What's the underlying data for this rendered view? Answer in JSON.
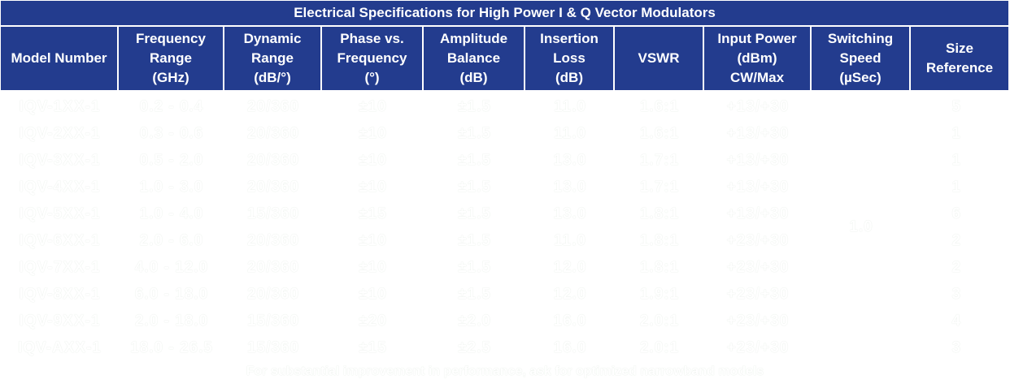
{
  "title": "Electrical Specifications for High Power I & Q Vector Modulators",
  "headers": [
    [
      "Model Number"
    ],
    [
      "Frequency",
      "Range",
      "(GHz)"
    ],
    [
      "Dynamic",
      "Range",
      "(dB/°)"
    ],
    [
      "Phase vs.",
      "Frequency",
      "(°)"
    ],
    [
      "Amplitude",
      "Balance",
      "(dB)"
    ],
    [
      "Insertion",
      "Loss",
      "(dB)"
    ],
    [
      "VSWR"
    ],
    [
      "Input Power",
      "(dBm)",
      "CW/Max"
    ],
    [
      "Switching",
      "Speed",
      "(µSec)"
    ],
    [
      "Size",
      "Reference"
    ]
  ],
  "rows": [
    [
      "IQV-1XX-1",
      "0.2 - 0.4",
      "20/360",
      "±10",
      "±1.5",
      "11.0",
      "1.6:1",
      "+13/+30",
      "5"
    ],
    [
      "IQV-2XX-1",
      "0.3 - 0.6",
      "20/360",
      "±10",
      "±1.5",
      "11.0",
      "1.6:1",
      "+13/+30",
      "1"
    ],
    [
      "IQV-3XX-1",
      "0.5 - 2.0",
      "20/360",
      "±10",
      "±1.5",
      "13.0",
      "1.7:1",
      "+13/+30",
      "1"
    ],
    [
      "IQV-4XX-1",
      "1.0 - 3.0",
      "20/360",
      "±10",
      "±1.5",
      "13.0",
      "1.7:1",
      "+13/+30",
      "1"
    ],
    [
      "IQV-5XX-1",
      "1.0 - 4.0",
      "15/360",
      "±15",
      "±1.5",
      "13.0",
      "1.8:1",
      "+13/+30",
      "6"
    ],
    [
      "IQV-6XX-1",
      "2.0 - 6.0",
      "20/360",
      "±10",
      "±1.5",
      "11.0",
      "1.8:1",
      "+23/+30",
      "2"
    ],
    [
      "IQV-7XX-1",
      "4.0 - 12.0",
      "20/360",
      "±10",
      "±1.5",
      "12.0",
      "1.8:1",
      "+23/+30",
      "2"
    ],
    [
      "IQV-8XX-1",
      "6.0 - 18.0",
      "20/360",
      "±10",
      "±1.5",
      "12.0",
      "1.9:1",
      "+23/+30",
      "3"
    ],
    [
      "IQV-9XX-1",
      "2.0 - 18.0",
      "15/360",
      "±20",
      "±2.0",
      "16.0",
      "2.0:1",
      "+23/+30",
      "4"
    ],
    [
      "IQV-AXX-1",
      "18.0 - 26.5",
      "15/360",
      "±15",
      "±2.5",
      "16.0",
      "2.0:1",
      "+23/+30",
      "3"
    ]
  ],
  "switching_speed": "1.0",
  "note": "For substantial improvement in performance, ask for optimized narrowband models",
  "colors": {
    "header_bg": "#233c8e",
    "header_text": "#ffffff",
    "body_text": "#ffffff",
    "body_outline": "#e4ebe4"
  }
}
